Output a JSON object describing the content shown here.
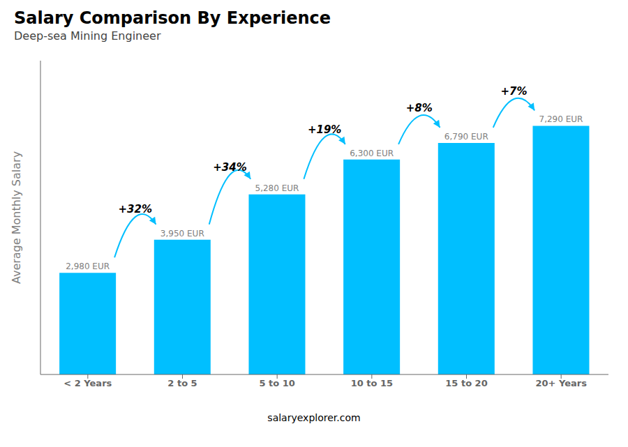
{
  "chart_data": {
    "type": "bar",
    "title": "Salary Comparison By Experience",
    "subtitle": "Deep-sea Mining Engineer",
    "categories": [
      "< 2 Years",
      "2 to 5",
      "5 to 10",
      "10 to 15",
      "15 to 20",
      "20+ Years"
    ],
    "values": [
      2980,
      3950,
      5280,
      6300,
      6790,
      7290
    ],
    "value_labels": [
      "2,980 EUR",
      "3,950 EUR",
      "5,280 EUR",
      "6,300 EUR",
      "6,790 EUR",
      "7,290 EUR"
    ],
    "data_labels": true,
    "color": "#00bfff",
    "ylabel": "Average Monthly Salary",
    "ylim": [
      0,
      9200
    ],
    "tick_labels": "x",
    "grid": false,
    "annotations": [
      "+32%",
      "+34%",
      "+19%",
      "+8%",
      "+7%"
    ],
    "footer": "salaryexplorer.com"
  }
}
